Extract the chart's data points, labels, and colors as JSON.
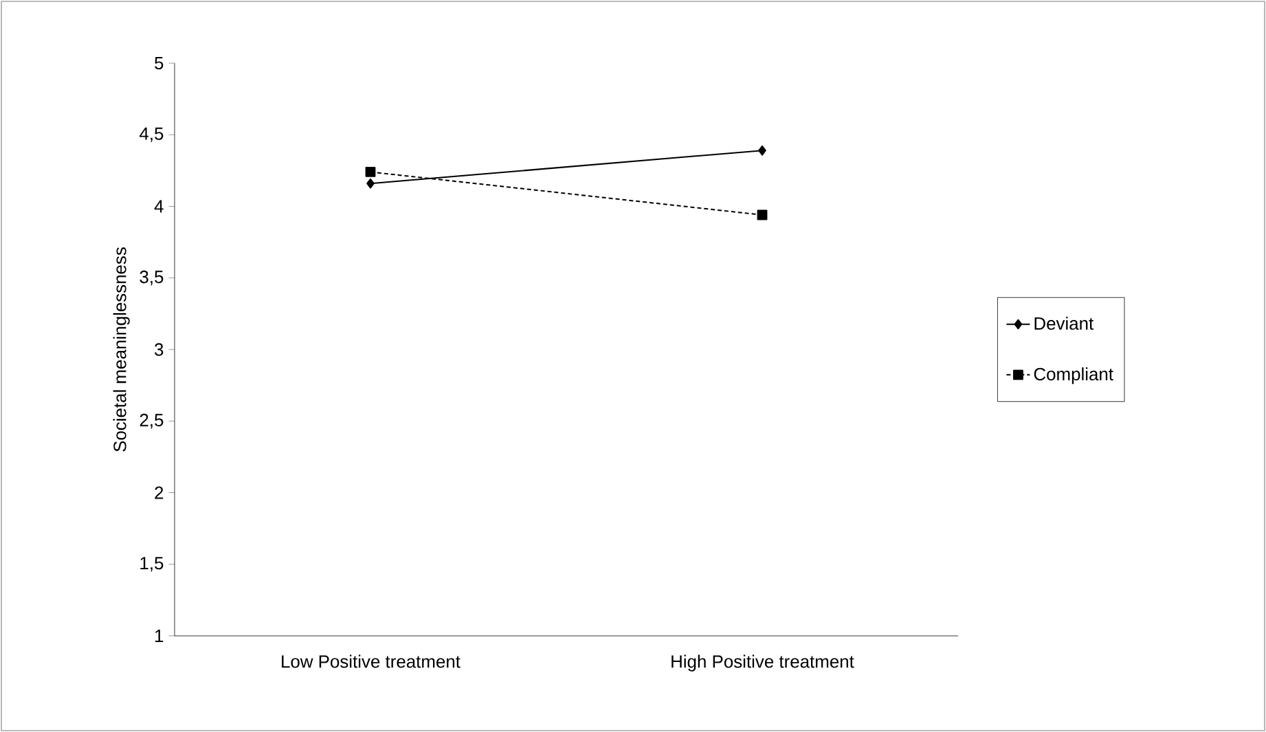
{
  "chart_data": {
    "type": "line",
    "ylabel": "Societal meaninglessness",
    "categories": [
      "Low Positive treatment",
      "High Positive treatment"
    ],
    "series": [
      {
        "name": "Deviant",
        "color": "#000000",
        "values": [
          4.16,
          4.39
        ],
        "marker": "diamond",
        "line_style": "solid"
      },
      {
        "name": "Compliant",
        "color": "#000000",
        "values": [
          4.24,
          3.94
        ],
        "marker": "square",
        "line_style": "dotted"
      }
    ],
    "ylim": [
      1,
      5
    ],
    "yticks": [
      1,
      {
        "value": 1.5,
        "label": "1,5"
      },
      2,
      {
        "value": 2.5,
        "label": "2,5"
      },
      3,
      {
        "value": 3.5,
        "label": "3,5"
      },
      4,
      {
        "value": 4.5,
        "label": "4,5"
      },
      5
    ],
    "grid": false,
    "legend": "right"
  }
}
